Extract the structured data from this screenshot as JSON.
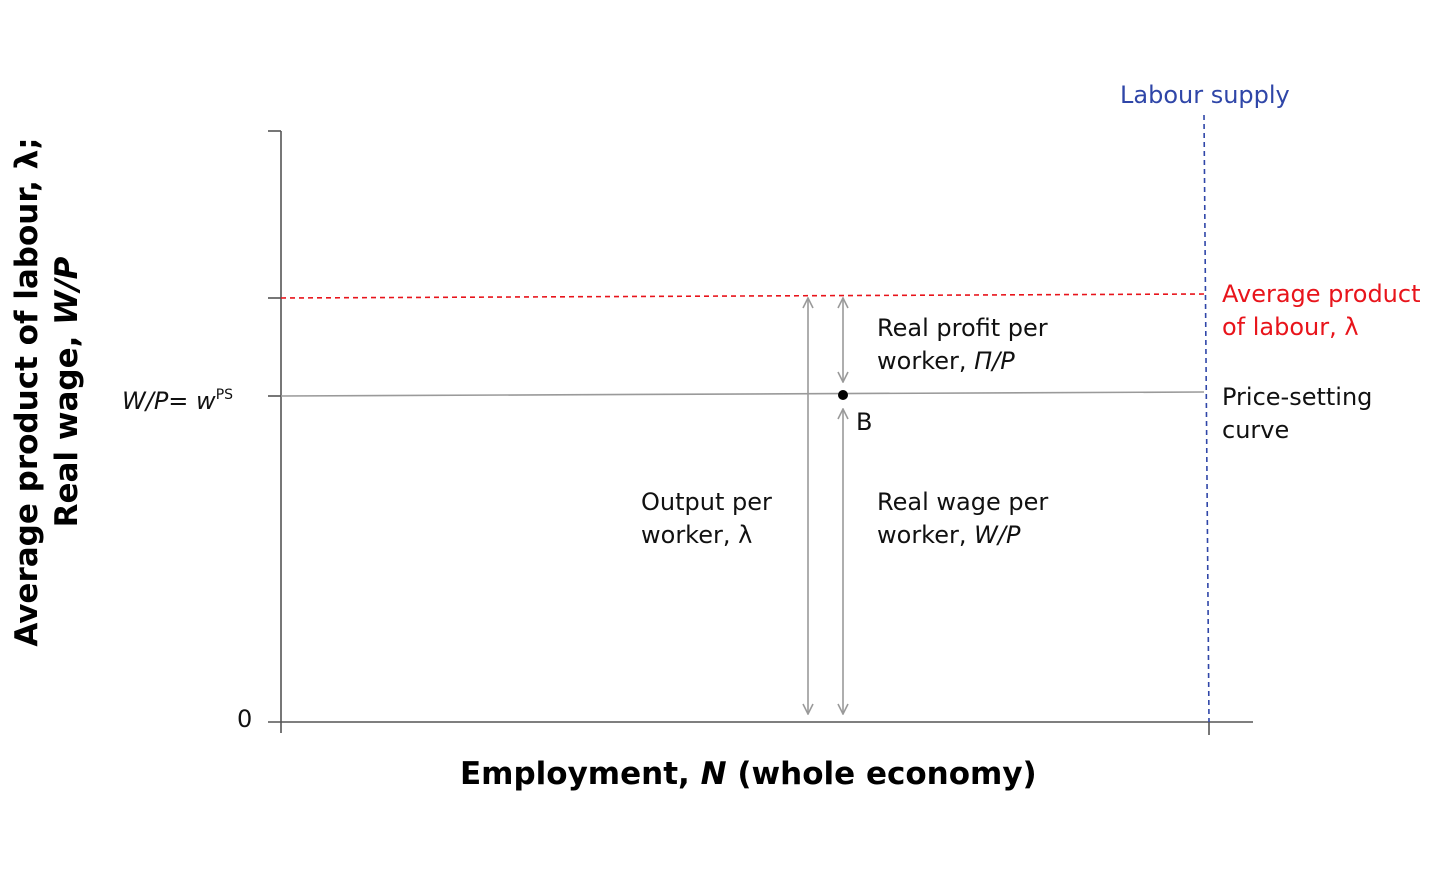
{
  "axes": {
    "x_label_prefix": "Employment, ",
    "x_label_var": "N",
    "x_label_suffix": " (whole economy)",
    "y_label_line1": "Average product of labour, λ;",
    "y_label_line2_prefix": "Real wage, ",
    "y_label_line2_var": "W/P",
    "origin_label": "0"
  },
  "wage_label": {
    "lhs": "W/P",
    "eq": "= ",
    "w": "w",
    "sup": "PS"
  },
  "curves": {
    "labour_supply": "Labour supply",
    "avg_product_line1": "Average product",
    "avg_product_line2": "of labour, λ",
    "price_setting_line1": "Price-setting",
    "price_setting_line2": "curve"
  },
  "annotations": {
    "profit_line1": "Real profit per",
    "profit_line2_prefix": "worker, ",
    "profit_line2_var": "Π/P",
    "output_line1": "Output per",
    "output_line2": "worker, λ",
    "wage_line1": "Real wage per",
    "wage_line2_prefix": "worker, ",
    "wage_line2_var": "W/P",
    "point_label": "B"
  },
  "colors": {
    "axis": "#555555",
    "average_product": "#e8141b",
    "labour_supply": "#2f46a8",
    "price_setting": "#9a9a9a",
    "arrows": "#9a9a9a"
  }
}
